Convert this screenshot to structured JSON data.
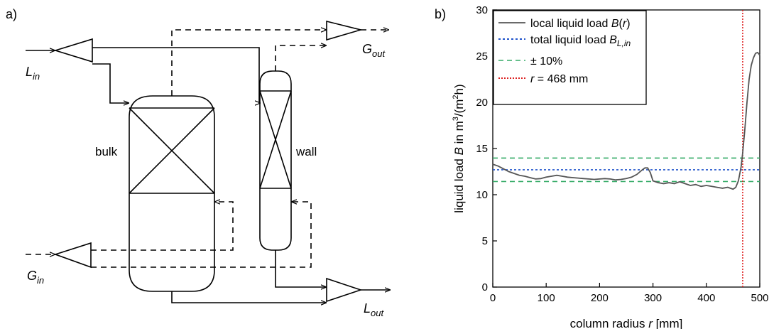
{
  "panel_a": {
    "label": "a)",
    "bulk_label": "bulk",
    "wall_label": "wall",
    "l_in": {
      "main": "L",
      "sub": "in"
    },
    "g_out": {
      "main": "G",
      "sub": "out"
    },
    "g_in": {
      "main": "G",
      "sub": "in"
    },
    "l_out": {
      "main": "L",
      "sub": "out"
    }
  },
  "panel_b": {
    "label": "b)"
  },
  "chart_data": {
    "type": "line",
    "xlabel_parts": [
      "column radius ",
      "r",
      " [mm]"
    ],
    "ylabel_parts": [
      "liquid load ",
      "B",
      " in m",
      "3",
      "/(m",
      "2",
      "h)"
    ],
    "xlim": [
      0,
      500
    ],
    "ylim": [
      0,
      30
    ],
    "xticks": [
      0,
      100,
      200,
      300,
      400,
      500
    ],
    "yticks": [
      0,
      5,
      10,
      15,
      20,
      25,
      30
    ],
    "grid": false,
    "legend_position": "top-left",
    "legend": [
      {
        "text": "local liquid load ",
        "italic": "B",
        "suffix": "(r)",
        "suffix_italic_r": true,
        "color": "#555555",
        "style": "solid"
      },
      {
        "text": "total liquid load ",
        "italic": "B",
        "sub": "L,in",
        "color": "#2255cc",
        "style": "dotted"
      },
      {
        "text": "± 10%",
        "color": "#33aa66",
        "style": "dashed"
      },
      {
        "text": " = 468 mm",
        "italic_prefix": "r",
        "color": "#dd2222",
        "style": "dotted"
      }
    ],
    "series": [
      {
        "name": "local liquid load B(r)",
        "color": "#555555",
        "x": [
          0,
          10,
          20,
          30,
          40,
          50,
          60,
          70,
          80,
          90,
          100,
          110,
          120,
          130,
          140,
          150,
          160,
          170,
          180,
          190,
          200,
          210,
          220,
          230,
          240,
          250,
          260,
          270,
          280,
          285,
          290,
          295,
          300,
          310,
          320,
          330,
          340,
          350,
          360,
          370,
          380,
          390,
          400,
          410,
          420,
          430,
          440,
          450,
          455,
          460,
          465,
          468,
          472,
          476,
          480,
          484,
          488,
          492,
          496,
          500
        ],
        "y": [
          13.3,
          13.1,
          12.8,
          12.5,
          12.3,
          12.1,
          12.0,
          11.85,
          11.7,
          11.75,
          11.9,
          12.0,
          12.1,
          12.0,
          11.9,
          11.85,
          11.8,
          11.75,
          11.7,
          11.65,
          11.7,
          11.75,
          11.7,
          11.6,
          11.65,
          11.75,
          11.9,
          12.2,
          12.7,
          12.9,
          12.9,
          12.4,
          11.5,
          11.3,
          11.2,
          11.3,
          11.2,
          11.4,
          11.2,
          11.0,
          11.1,
          10.9,
          11.0,
          10.9,
          10.8,
          10.7,
          10.8,
          10.6,
          10.8,
          11.5,
          13.0,
          14.5,
          17.0,
          20.0,
          22.5,
          24.0,
          24.8,
          25.3,
          25.4,
          25.1
        ]
      }
    ],
    "reference_lines": [
      {
        "name": "total liquid load",
        "orientation": "horizontal",
        "value": 12.7,
        "color": "#2255cc"
      },
      {
        "name": "+10%",
        "orientation": "horizontal",
        "value": 13.97,
        "color": "#33aa66"
      },
      {
        "name": "-10%",
        "orientation": "horizontal",
        "value": 11.43,
        "color": "#33aa66"
      },
      {
        "name": "r = 468 mm",
        "orientation": "vertical",
        "value": 468,
        "color": "#dd2222"
      }
    ]
  }
}
